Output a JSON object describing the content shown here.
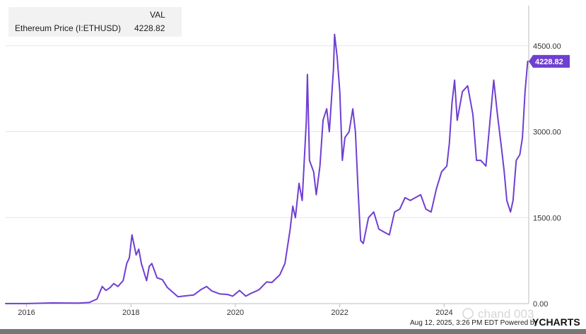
{
  "legend": {
    "header": "VAL",
    "series_label": "Ethereum Price (I:ETHUSD)",
    "series_value": "4228.82"
  },
  "last_value_flag": "4228.82",
  "footer": {
    "timestamp": "Aug 12, 2025, 3:26 PM EDT Powered by",
    "brand": "YCHARTS"
  },
  "watermark": "chand 003",
  "colors": {
    "series": "#6f3fd1",
    "flag": "#6f3fd1"
  },
  "chart_data": {
    "type": "line",
    "title": "",
    "xlabel": "",
    "ylabel": "",
    "xlim": [
      2015.6,
      2025.62
    ],
    "ylim": [
      0,
      5200
    ],
    "x_ticks": [
      {
        "value": 2016,
        "label": "2016"
      },
      {
        "value": 2018,
        "label": "2018"
      },
      {
        "value": 2020,
        "label": "2020"
      },
      {
        "value": 2022,
        "label": "2022"
      },
      {
        "value": 2024,
        "label": "2024"
      }
    ],
    "y_ticks": [
      {
        "value": 0,
        "label": "0.00"
      },
      {
        "value": 1500,
        "label": "1500.00"
      },
      {
        "value": 3000,
        "label": "3000.00"
      },
      {
        "value": 4500,
        "label": "4500.00"
      }
    ],
    "grid": "horizontal",
    "legend_position": "top-left",
    "series": [
      {
        "name": "Ethereum Price (I:ETHUSD)",
        "points": [
          [
            2015.6,
            1
          ],
          [
            2016.0,
            1
          ],
          [
            2016.5,
            12
          ],
          [
            2017.0,
            9
          ],
          [
            2017.2,
            20
          ],
          [
            2017.35,
            80
          ],
          [
            2017.45,
            300
          ],
          [
            2017.52,
            230
          ],
          [
            2017.6,
            280
          ],
          [
            2017.67,
            350
          ],
          [
            2017.75,
            300
          ],
          [
            2017.85,
            400
          ],
          [
            2017.92,
            700
          ],
          [
            2017.97,
            800
          ],
          [
            2018.02,
            1200
          ],
          [
            2018.1,
            850
          ],
          [
            2018.15,
            950
          ],
          [
            2018.2,
            700
          ],
          [
            2018.25,
            550
          ],
          [
            2018.3,
            400
          ],
          [
            2018.35,
            650
          ],
          [
            2018.4,
            700
          ],
          [
            2018.5,
            450
          ],
          [
            2018.6,
            420
          ],
          [
            2018.7,
            280
          ],
          [
            2018.8,
            200
          ],
          [
            2018.9,
            120
          ],
          [
            2019.0,
            130
          ],
          [
            2019.2,
            150
          ],
          [
            2019.35,
            250
          ],
          [
            2019.45,
            300
          ],
          [
            2019.55,
            220
          ],
          [
            2019.7,
            170
          ],
          [
            2019.85,
            160
          ],
          [
            2019.95,
            130
          ],
          [
            2020.08,
            230
          ],
          [
            2020.2,
            130
          ],
          [
            2020.3,
            180
          ],
          [
            2020.45,
            240
          ],
          [
            2020.6,
            380
          ],
          [
            2020.7,
            370
          ],
          [
            2020.85,
            500
          ],
          [
            2020.95,
            700
          ],
          [
            2021.05,
            1300
          ],
          [
            2021.1,
            1700
          ],
          [
            2021.15,
            1500
          ],
          [
            2021.22,
            2100
          ],
          [
            2021.28,
            1800
          ],
          [
            2021.36,
            3200
          ],
          [
            2021.38,
            4000
          ],
          [
            2021.42,
            2500
          ],
          [
            2021.5,
            2300
          ],
          [
            2021.55,
            1900
          ],
          [
            2021.62,
            2400
          ],
          [
            2021.68,
            3200
          ],
          [
            2021.75,
            3400
          ],
          [
            2021.8,
            3000
          ],
          [
            2021.88,
            4100
          ],
          [
            2021.9,
            4700
          ],
          [
            2021.95,
            4300
          ],
          [
            2022.0,
            3700
          ],
          [
            2022.05,
            2500
          ],
          [
            2022.1,
            2900
          ],
          [
            2022.18,
            3000
          ],
          [
            2022.25,
            3400
          ],
          [
            2022.3,
            3000
          ],
          [
            2022.35,
            2000
          ],
          [
            2022.4,
            1100
          ],
          [
            2022.45,
            1050
          ],
          [
            2022.55,
            1500
          ],
          [
            2022.65,
            1600
          ],
          [
            2022.75,
            1300
          ],
          [
            2022.85,
            1250
          ],
          [
            2022.95,
            1200
          ],
          [
            2023.05,
            1600
          ],
          [
            2023.15,
            1650
          ],
          [
            2023.25,
            1850
          ],
          [
            2023.35,
            1800
          ],
          [
            2023.45,
            1850
          ],
          [
            2023.55,
            1900
          ],
          [
            2023.65,
            1650
          ],
          [
            2023.75,
            1600
          ],
          [
            2023.85,
            2000
          ],
          [
            2023.95,
            2300
          ],
          [
            2024.05,
            2400
          ],
          [
            2024.1,
            2800
          ],
          [
            2024.15,
            3500
          ],
          [
            2024.2,
            3900
          ],
          [
            2024.25,
            3200
          ],
          [
            2024.35,
            3700
          ],
          [
            2024.45,
            3800
          ],
          [
            2024.55,
            3300
          ],
          [
            2024.62,
            2500
          ],
          [
            2024.7,
            2500
          ],
          [
            2024.8,
            2400
          ],
          [
            2024.88,
            3200
          ],
          [
            2024.95,
            3900
          ],
          [
            2025.02,
            3300
          ],
          [
            2025.1,
            2700
          ],
          [
            2025.15,
            2300
          ],
          [
            2025.2,
            1800
          ],
          [
            2025.27,
            1600
          ],
          [
            2025.32,
            1800
          ],
          [
            2025.38,
            2500
          ],
          [
            2025.45,
            2600
          ],
          [
            2025.5,
            2900
          ],
          [
            2025.55,
            3700
          ],
          [
            2025.6,
            4228.82
          ]
        ]
      }
    ]
  }
}
